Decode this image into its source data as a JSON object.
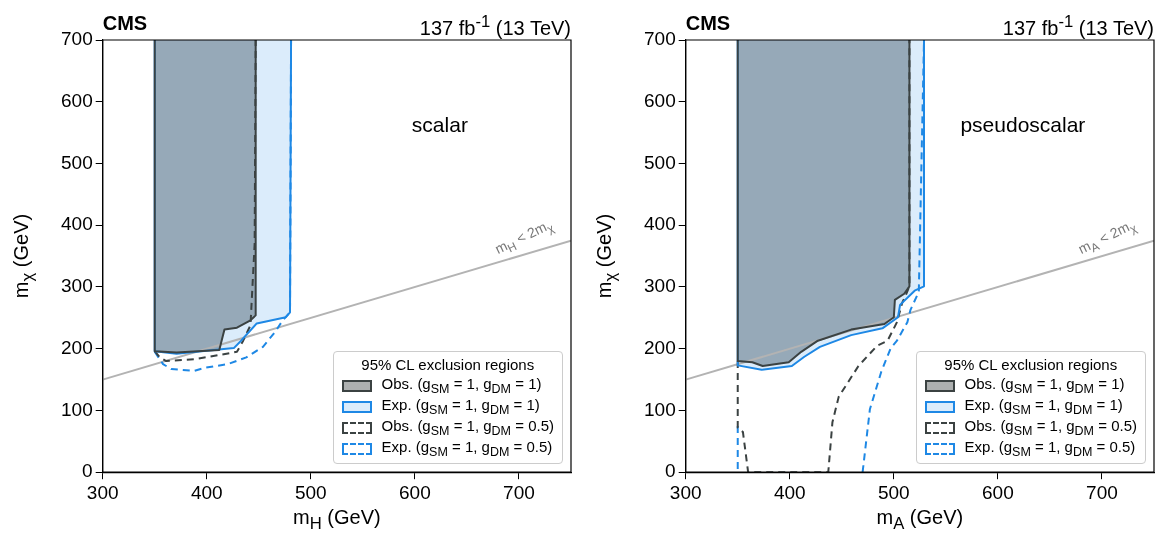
{
  "chart_data": [
    {
      "type": "line",
      "xlabel": "m$_{H}$ (GeV)",
      "ylabel": "m$_{χ}$ (GeV)",
      "legend_title": "95% CL exclusion regions",
      "legend": "bottom right",
      "marker": "none",
      "xlim": [
        300,
        750
      ],
      "xticks": [
        300,
        400,
        500,
        600,
        700
      ],
      "ylim": [
        0,
        700
      ],
      "yticks": [
        0,
        100,
        200,
        300,
        400,
        500,
        600,
        700
      ],
      "annotations": [
        "CMS",
        "137 fb$^{-1}$ (13 TeV)",
        "scalar",
        {
          "text": "m$_{H}$ < 2m$_{χ}$",
          "x": 705,
          "y": 352
        }
      ],
      "series": [
        {
          "name": "Obs. (g$_{SM}$ = 1, g$_{DM}$ = 1)",
          "type": "area",
          "color": "#3b4242",
          "line_style": "solid",
          "x": [
            350,
            350,
            371,
            412,
            417,
            429,
            442,
            447,
            447
          ],
          "values": [
            700,
            196,
            194,
            198,
            231,
            234,
            246,
            254,
            700
          ]
        },
        {
          "name": "Exp. (g$_{SM}$ = 1, g$_{DM}$ = 1)",
          "type": "area",
          "color": "#1e88e5",
          "line_style": "solid",
          "x": [
            350,
            350,
            371,
            426,
            433,
            448,
            476,
            480,
            481
          ],
          "values": [
            700,
            196,
            192,
            201,
            213,
            241,
            251,
            259,
            700
          ]
        },
        {
          "name": "Obs. (g$_{SM}$ = 1, g$_{DM}$ = 0.5)",
          "color": "#3b4242",
          "line_style": "dashed",
          "x": [
            350,
            355,
            361,
            388,
            413,
            429,
            435,
            442,
            446,
            447
          ],
          "values": [
            196,
            186,
            180,
            183,
            190,
            195,
            213,
            238,
            370,
            700
          ]
        },
        {
          "name": "Exp. (g$_{SM}$ = 1, g$_{DM}$ = 0.5)",
          "color": "#1e88e5",
          "line_style": "dashed",
          "x": [
            350,
            358,
            366,
            388,
            398,
            420,
            438,
            454,
            466,
            473,
            480,
            481
          ],
          "values": [
            195,
            175,
            167,
            164,
            169,
            175,
            186,
            203,
            228,
            246,
            259,
            700
          ]
        },
        {
          "color": "#b3b3b3",
          "line_style": "solid",
          "x": [
            300,
            750
          ],
          "values": [
            150,
            375
          ]
        }
      ]
    },
    {
      "type": "line",
      "xlabel": "m$_{A}$ (GeV)",
      "ylabel": "m$_{χ}$ (GeV)",
      "legend_title": "95% CL exclusion regions",
      "legend": "bottom right",
      "marker": "none",
      "xlim": [
        300,
        750
      ],
      "xticks": [
        300,
        400,
        500,
        600,
        700
      ],
      "ylim": [
        0,
        700
      ],
      "yticks": [
        0,
        100,
        200,
        300,
        400,
        500,
        600,
        700
      ],
      "annotations": [
        "CMS",
        "137 fb$^{-1}$ (13 TeV)",
        "pseudoscalar",
        {
          "text": "m$_{A}$ < 2m$_{χ}$",
          "x": 705,
          "y": 352
        }
      ],
      "series": [
        {
          "name": "Obs. (g$_{SM}$ = 1, g$_{DM}$ = 1)",
          "type": "area",
          "color": "#3b4242",
          "line_style": "solid",
          "x": [
            350,
            350,
            364,
            374,
            399,
            411,
            427,
            459,
            491,
            500,
            501,
            510,
            515,
            515
          ],
          "values": [
            700,
            180,
            178,
            172,
            178,
            195,
            213,
            231,
            240,
            251,
            279,
            289,
            301,
            700
          ]
        },
        {
          "name": "Exp. (g$_{SM}$ = 1, g$_{DM}$ = 1)",
          "type": "area",
          "color": "#1e88e5",
          "line_style": "solid",
          "x": [
            350,
            350,
            373,
            402,
            414,
            429,
            459,
            489,
            504,
            506,
            520,
            529,
            529
          ],
          "values": [
            700,
            173,
            166,
            172,
            187,
            203,
            222,
            233,
            251,
            271,
            294,
            301,
            700
          ]
        },
        {
          "name": "Obs. (g$_{SM}$ = 1, g$_{DM}$ = 0.5)",
          "color": "#3b4242",
          "line_style": "dashed",
          "x": [
            350,
            350,
            355,
            360,
            437,
            441,
            447,
            466,
            484,
            494,
            503,
            508,
            512,
            515,
            515
          ],
          "values": [
            180,
            72,
            65,
            0,
            0,
            81,
            122,
            172,
            205,
            213,
            243,
            274,
            289,
            301,
            700
          ]
        },
        {
          "name": "Exp. (g$_{SM}$ = 1, g$_{DM}$ = 0.5)",
          "color": "#1e88e5",
          "line_style": "dashed",
          "x": [
            350,
            350,
            410,
            470,
            477,
            488,
            497,
            503,
            513,
            516,
            524,
            529
          ],
          "values": [
            75,
            0,
            null,
            0,
            102,
            163,
            201,
            213,
            243,
            263,
            292,
            700
          ]
        },
        {
          "color": "#b3b3b3",
          "line_style": "solid",
          "x": [
            300,
            750
          ],
          "values": [
            150,
            375
          ]
        }
      ]
    }
  ]
}
